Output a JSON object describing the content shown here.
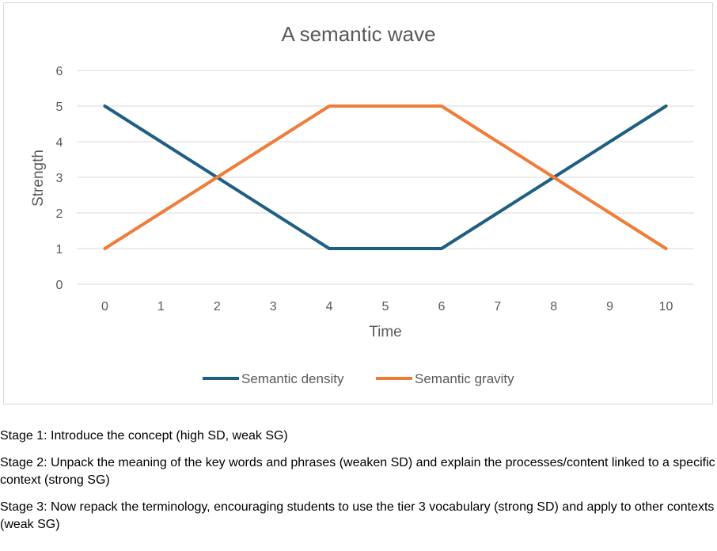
{
  "chart_data": {
    "type": "line",
    "title": "A semantic wave",
    "xlabel": "Time",
    "ylabel": "Strength",
    "x": [
      0,
      1,
      2,
      3,
      4,
      5,
      6,
      7,
      8,
      9,
      10
    ],
    "xlim": [
      0,
      10
    ],
    "ylim": [
      0,
      6
    ],
    "yticks": [
      0,
      1,
      2,
      3,
      4,
      5,
      6
    ],
    "grid": true,
    "legend": "bottom",
    "series": [
      {
        "name": "Semantic density",
        "color": "#1f5f82",
        "values": [
          5,
          4,
          3,
          2,
          1,
          1,
          1,
          2,
          3,
          4,
          5
        ]
      },
      {
        "name": "Semantic gravity",
        "color": "#ef7d3a",
        "values": [
          1,
          2,
          3,
          4,
          5,
          5,
          5,
          4,
          3,
          2,
          1
        ]
      }
    ]
  },
  "notes": [
    "Stage 1: Introduce the concept (high SD, weak SG)",
    "Stage 2: Unpack the meaning of the key words and phrases (weaken SD) and explain the processes/content linked to a specific context (strong SG)",
    "Stage 3: Now repack the terminology, encouraging students to use the tier 3 vocabulary (strong SD) and apply to other contexts (weak SG)"
  ]
}
